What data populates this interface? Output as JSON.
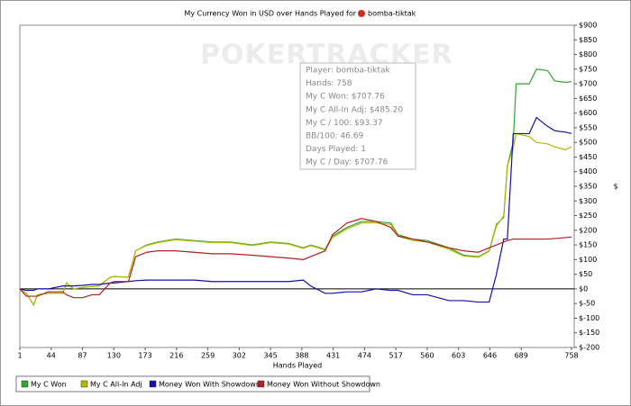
{
  "chart_data": {
    "type": "line",
    "title": "My Currency Won in USD over Hands Played for",
    "player": "bomba-tiktak",
    "watermark": "POKERTRACKER",
    "x_label": "Hands Played",
    "y_label": "$",
    "xlim": [
      1,
      758
    ],
    "xticks": [
      1,
      44,
      87,
      130,
      173,
      216,
      259,
      302,
      345,
      388,
      431,
      474,
      517,
      560,
      603,
      646,
      689,
      758
    ],
    "ylim": [
      -200,
      900
    ],
    "yticks": [
      {
        "value": 900,
        "label": "$900"
      },
      {
        "value": 850,
        "label": "$850"
      },
      {
        "value": 800,
        "label": "$800"
      },
      {
        "value": 750,
        "label": "$750"
      },
      {
        "value": 700,
        "label": "$700"
      },
      {
        "value": 650,
        "label": "$650"
      },
      {
        "value": 600,
        "label": "$600"
      },
      {
        "value": 550,
        "label": "$550"
      },
      {
        "value": 500,
        "label": "$500"
      },
      {
        "value": 450,
        "label": "$450"
      },
      {
        "value": 400,
        "label": "$400"
      },
      {
        "value": 350,
        "label": "$350"
      },
      {
        "value": 300,
        "label": "$300"
      },
      {
        "value": 250,
        "label": "$250"
      },
      {
        "value": 200,
        "label": "$200"
      },
      {
        "value": 150,
        "label": "$150"
      },
      {
        "value": 100,
        "label": "$100"
      },
      {
        "value": 50,
        "label": "$50"
      },
      {
        "value": 0,
        "label": "$0"
      },
      {
        "value": -50,
        "label": "$-50"
      },
      {
        "value": -100,
        "label": "$-100"
      },
      {
        "value": -150,
        "label": "$-150"
      },
      {
        "value": -200,
        "label": "$-200"
      }
    ],
    "grid": false,
    "legend": "bottom",
    "tooltip": [
      "Player: bomba-tiktak",
      "Hands: 758",
      "My C Won: $707.76",
      "My C All-In Adj: $485.20",
      "My C / 100: $93.37",
      "BB/100: 46.69",
      "Days Played: 1",
      "My C / Day: $707.76"
    ],
    "x": [
      1,
      10,
      20,
      25,
      40,
      60,
      65,
      75,
      87,
      100,
      110,
      125,
      130,
      150,
      160,
      175,
      190,
      215,
      240,
      265,
      290,
      320,
      345,
      370,
      390,
      400,
      420,
      430,
      450,
      470,
      490,
      510,
      520,
      540,
      560,
      590,
      610,
      630,
      645,
      655,
      665,
      670,
      678,
      682,
      700,
      710,
      725,
      735,
      750,
      758
    ],
    "series": [
      {
        "name": "My C Won",
        "color": "#2ea82e",
        "values": [
          0,
          -15,
          -55,
          -20,
          -15,
          -15,
          20,
          0,
          5,
          8,
          10,
          40,
          42,
          40,
          130,
          150,
          160,
          170,
          165,
          160,
          160,
          150,
          160,
          155,
          140,
          150,
          135,
          180,
          210,
          230,
          230,
          225,
          185,
          170,
          165,
          140,
          115,
          110,
          130,
          220,
          245,
          420,
          500,
          700,
          700,
          750,
          745,
          710,
          705,
          707.76
        ]
      },
      {
        "name": "My C All-In Adj",
        "color": "#b8b800",
        "values": [
          0,
          -15,
          -55,
          -20,
          -15,
          -15,
          20,
          0,
          5,
          8,
          10,
          40,
          42,
          40,
          130,
          148,
          158,
          168,
          163,
          158,
          158,
          148,
          158,
          153,
          138,
          148,
          133,
          175,
          205,
          225,
          225,
          220,
          180,
          165,
          160,
          135,
          112,
          108,
          128,
          215,
          250,
          420,
          480,
          530,
          520,
          500,
          495,
          485,
          475,
          485.2
        ]
      },
      {
        "name": "Money Won With Showdown",
        "color": "#1010aa",
        "values": [
          0,
          -5,
          -5,
          0,
          0,
          10,
          10,
          10,
          12,
          15,
          15,
          20,
          20,
          25,
          28,
          30,
          30,
          30,
          30,
          25,
          25,
          25,
          25,
          25,
          30,
          10,
          -15,
          -15,
          -10,
          -10,
          0,
          -5,
          -5,
          -20,
          -20,
          -40,
          -40,
          -45,
          -45,
          50,
          170,
          170,
          530,
          530,
          530,
          585,
          555,
          540,
          535,
          530
        ]
      },
      {
        "name": "Money Won Without Showdown",
        "color": "#b02020",
        "values": [
          0,
          -25,
          -25,
          -25,
          -10,
          -10,
          -20,
          -30,
          -30,
          -20,
          -20,
          20,
          25,
          25,
          110,
          125,
          130,
          130,
          125,
          120,
          120,
          115,
          110,
          105,
          100,
          110,
          130,
          185,
          225,
          240,
          230,
          210,
          180,
          170,
          160,
          140,
          130,
          125,
          140,
          150,
          160,
          165,
          170,
          170,
          170,
          170,
          170,
          172,
          175,
          177
        ]
      }
    ]
  }
}
